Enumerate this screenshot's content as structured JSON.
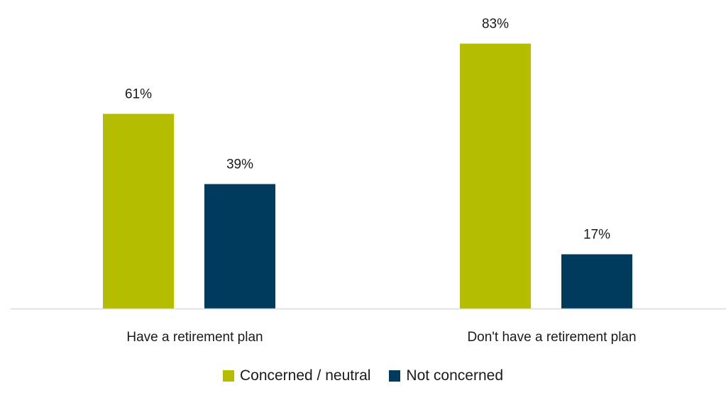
{
  "chart_data": {
    "type": "bar",
    "categories": [
      "Have a retirement plan",
      "Don't have a retirement plan"
    ],
    "series": [
      {
        "name": "Concerned / neutral",
        "values": [
          61,
          83
        ],
        "labels": [
          "61%",
          "83%"
        ],
        "color": "#b5bd00"
      },
      {
        "name": "Not concerned",
        "values": [
          39,
          17
        ],
        "labels": [
          "39%",
          "17%"
        ],
        "color": "#003a5d"
      }
    ],
    "ylim": [
      0,
      100
    ],
    "grid": false,
    "legend": "bottom",
    "axis_color": "#d9d9d9"
  }
}
